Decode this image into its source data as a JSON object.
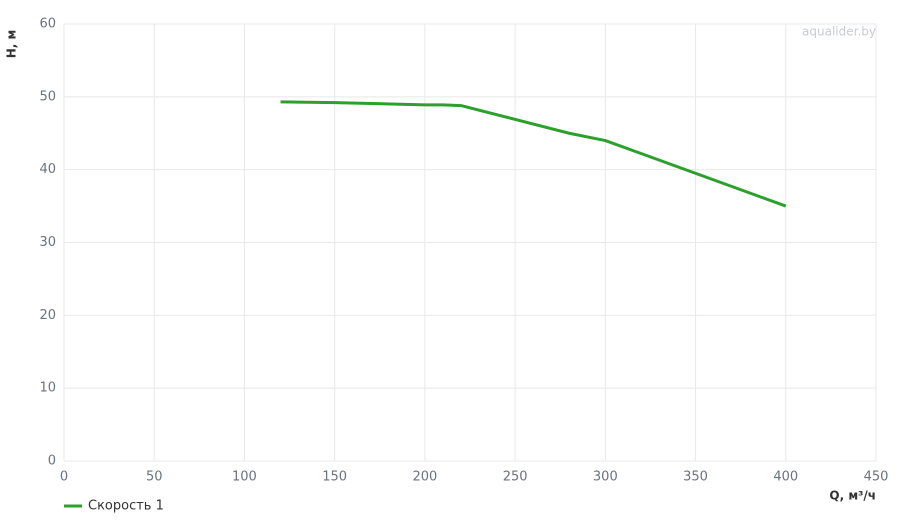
{
  "chart_data": {
    "type": "line",
    "x_label": "Q, м³/ч",
    "y_label": "H, м",
    "watermark": "aqualider.by",
    "x": [
      120,
      150,
      200,
      210,
      220,
      280,
      300,
      400
    ],
    "series": [
      {
        "name": "Скорость 1",
        "color": "#2ca02c",
        "values": [
          49.3,
          49.2,
          48.9,
          48.9,
          48.8,
          45,
          44,
          35
        ]
      }
    ],
    "xlim": [
      0,
      450
    ],
    "xticks": [
      0,
      50,
      100,
      150,
      200,
      250,
      300,
      350,
      400,
      450
    ],
    "ylim": [
      0,
      60
    ],
    "yticks": [
      0,
      10,
      20,
      30,
      40,
      50,
      60
    ],
    "grid": true
  }
}
